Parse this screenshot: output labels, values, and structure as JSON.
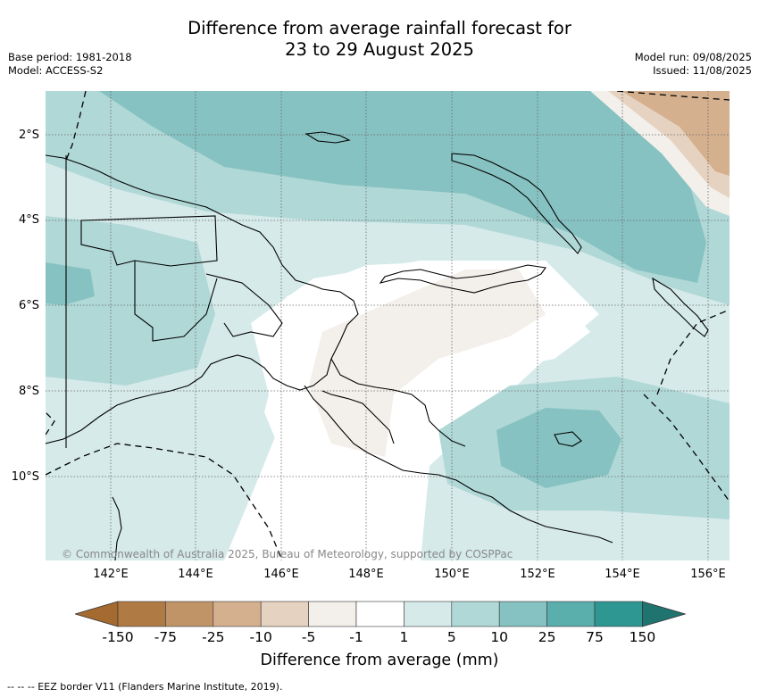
{
  "title_line1": "Difference from average rainfall forecast for",
  "title_line2": "23 to 29 August 2025",
  "meta_left": {
    "base_period": "Base period: 1981-2018",
    "model": "Model: ACCESS-S2"
  },
  "meta_right": {
    "model_run": "Model run: 09/08/2025",
    "issued": "Issued: 11/08/2025"
  },
  "lat_labels": [
    "2°S",
    "4°S",
    "6°S",
    "8°S",
    "10°S"
  ],
  "lon_labels": [
    "142°E",
    "144°E",
    "146°E",
    "148°E",
    "150°E",
    "152°E",
    "154°E",
    "156°E"
  ],
  "copyright": "© Commonwealth of Australia 2025, Bureau of Meteorology, supported by COSPPac",
  "colorbar": {
    "labels": [
      "-150",
      "-75",
      "-25",
      "-10",
      "-5",
      "-1",
      "1",
      "5",
      "10",
      "25",
      "75",
      "150"
    ],
    "colors": [
      "#a46a30",
      "#b07a45",
      "#c19468",
      "#d4b08f",
      "#e6d2c0",
      "#f3efea",
      "#ffffff",
      "#d6eaea",
      "#b0d8d7",
      "#86c2c1",
      "#5aaeac",
      "#2e9792",
      "#1f7470"
    ],
    "title": "Difference from average (mm)"
  },
  "footnote": "-- -- -- EEZ border V11 (Flanders Marine Institute, 2019)."
}
